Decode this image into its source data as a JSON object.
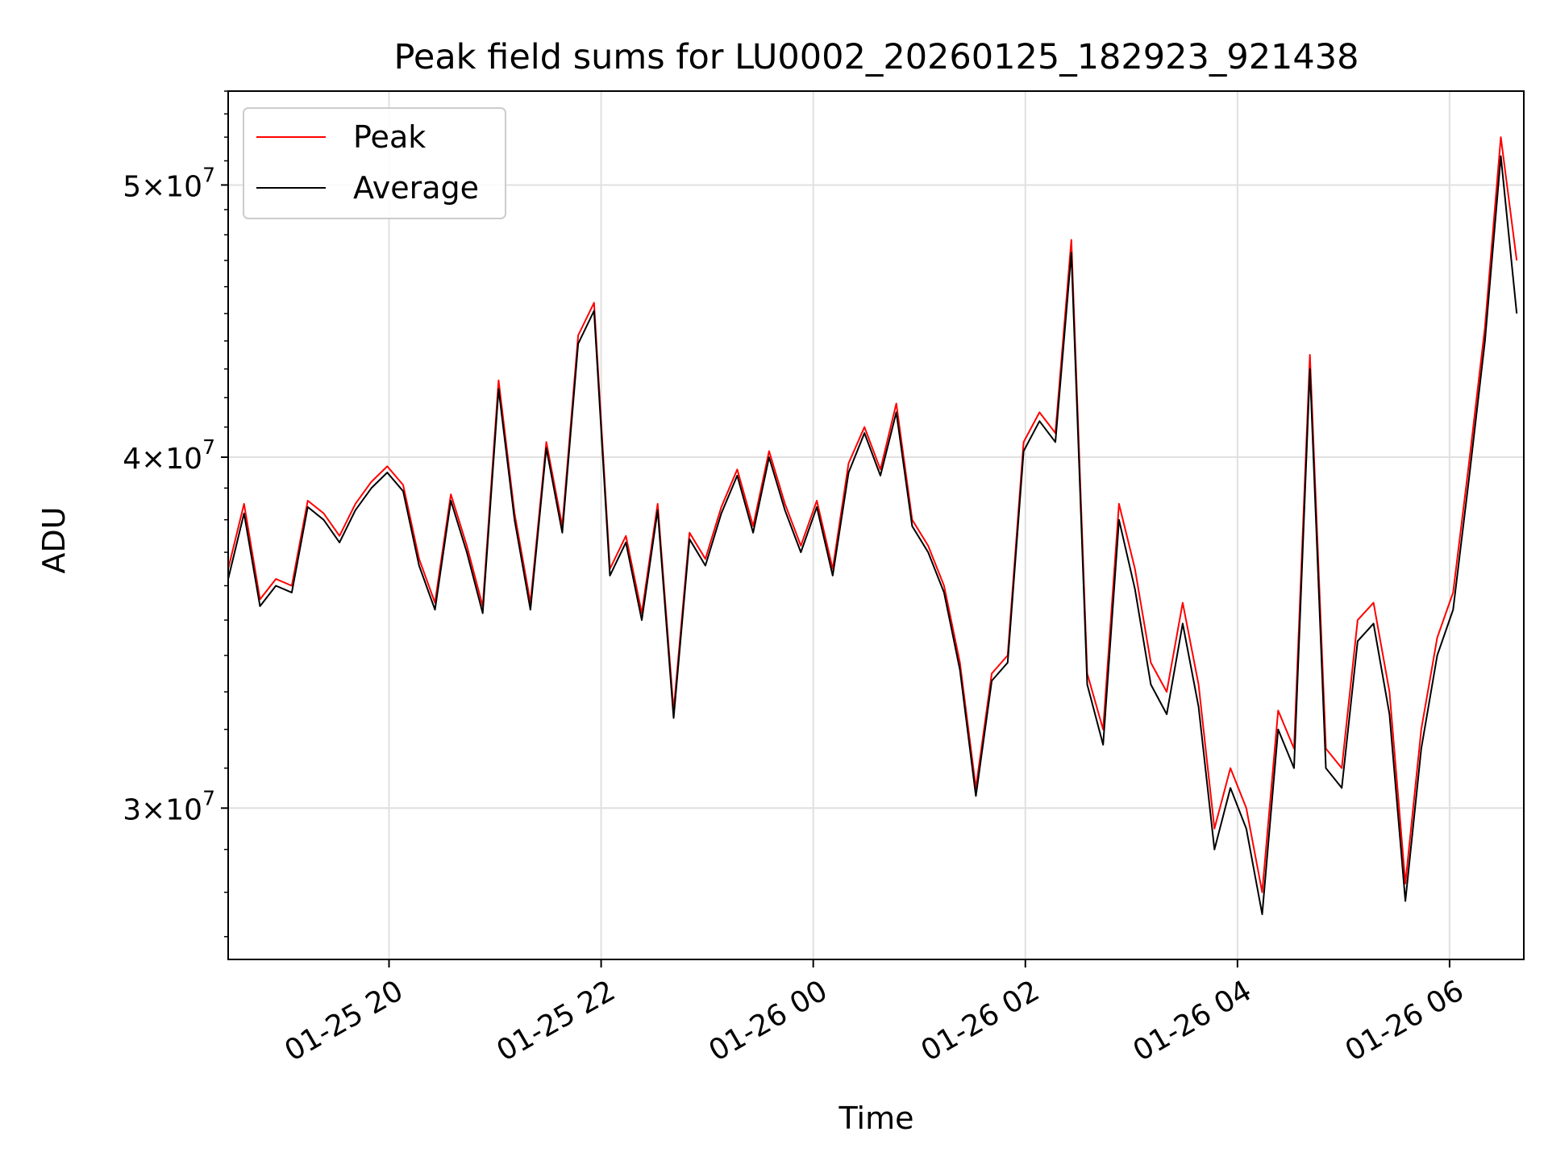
{
  "chart_data": {
    "type": "line",
    "title": "Peak field sums for LU0002_20260125_182923_921438",
    "xlabel": "Time",
    "ylabel": "ADU",
    "y_scale": "log",
    "ylim": [
      26500000,
      54000000
    ],
    "xlim": [
      "2026-01-25 18:29",
      "2026-01-26 06:42"
    ],
    "grid": true,
    "legend_position": "top-left",
    "x_ticks": [
      {
        "time": "2026-01-25 20:00",
        "label": "01-25 20"
      },
      {
        "time": "2026-01-25 22:00",
        "label": "01-25 22"
      },
      {
        "time": "2026-01-26 00:00",
        "label": "01-26 00"
      },
      {
        "time": "2026-01-26 02:00",
        "label": "01-26 02"
      },
      {
        "time": "2026-01-26 04:00",
        "label": "01-26 04"
      },
      {
        "time": "2026-01-26 06:00",
        "label": "01-26 06"
      }
    ],
    "y_ticks": [
      {
        "value": 30000000,
        "mantissa": "3",
        "exponent": "7"
      },
      {
        "value": 40000000,
        "mantissa": "4",
        "exponent": "7"
      },
      {
        "value": 50000000,
        "mantissa": "5",
        "exponent": "7"
      }
    ],
    "series": [
      {
        "name": "Peak",
        "color": "#ff0000",
        "x": [
          "2026-01-25 18:29",
          "2026-01-25 18:38",
          "2026-01-25 18:47",
          "2026-01-25 18:56",
          "2026-01-25 19:05",
          "2026-01-25 19:14",
          "2026-01-25 19:23",
          "2026-01-25 19:32",
          "2026-01-25 19:41",
          "2026-01-25 19:50",
          "2026-01-25 19:59",
          "2026-01-25 20:08",
          "2026-01-25 20:17",
          "2026-01-25 20:26",
          "2026-01-25 20:35",
          "2026-01-25 20:44",
          "2026-01-25 20:53",
          "2026-01-25 21:02",
          "2026-01-25 21:11",
          "2026-01-25 21:20",
          "2026-01-25 21:29",
          "2026-01-25 21:38",
          "2026-01-25 21:47",
          "2026-01-25 21:56",
          "2026-01-25 22:05",
          "2026-01-25 22:14",
          "2026-01-25 22:23",
          "2026-01-25 22:32",
          "2026-01-25 22:41",
          "2026-01-25 22:50",
          "2026-01-25 22:59",
          "2026-01-25 23:08",
          "2026-01-25 23:17",
          "2026-01-25 23:26",
          "2026-01-25 23:35",
          "2026-01-25 23:44",
          "2026-01-25 23:53",
          "2026-01-26 00:02",
          "2026-01-26 00:11",
          "2026-01-26 00:20",
          "2026-01-26 00:29",
          "2026-01-26 00:38",
          "2026-01-26 00:47",
          "2026-01-26 00:56",
          "2026-01-26 01:05",
          "2026-01-26 01:14",
          "2026-01-26 01:23",
          "2026-01-26 01:32",
          "2026-01-26 01:41",
          "2026-01-26 01:50",
          "2026-01-26 01:59",
          "2026-01-26 02:08",
          "2026-01-26 02:17",
          "2026-01-26 02:26",
          "2026-01-26 02:35",
          "2026-01-26 02:44",
          "2026-01-26 02:53",
          "2026-01-26 03:02",
          "2026-01-26 03:11",
          "2026-01-26 03:20",
          "2026-01-26 03:29",
          "2026-01-26 03:38",
          "2026-01-26 03:47",
          "2026-01-26 03:56",
          "2026-01-26 04:05",
          "2026-01-26 04:14",
          "2026-01-26 04:23",
          "2026-01-26 04:32",
          "2026-01-26 04:41",
          "2026-01-26 04:50",
          "2026-01-26 04:59",
          "2026-01-26 05:08",
          "2026-01-26 05:17",
          "2026-01-26 05:26",
          "2026-01-26 05:35",
          "2026-01-26 05:44",
          "2026-01-26 05:53",
          "2026-01-26 06:02",
          "2026-01-26 06:11",
          "2026-01-26 06:20",
          "2026-01-26 06:29",
          "2026-01-26 06:38"
        ],
        "y": [
          36500000,
          38500000,
          35600000,
          36200000,
          36000000,
          38600000,
          38200000,
          37500000,
          38500000,
          39200000,
          39700000,
          39100000,
          36800000,
          35500000,
          38800000,
          37200000,
          35400000,
          42600000,
          38200000,
          35500000,
          40500000,
          37800000,
          44200000,
          45400000,
          36500000,
          37500000,
          35200000,
          38500000,
          32500000,
          37600000,
          36800000,
          38400000,
          39600000,
          37800000,
          40200000,
          38500000,
          37200000,
          38600000,
          36500000,
          39800000,
          41000000,
          39600000,
          41800000,
          38000000,
          37200000,
          36000000,
          33800000,
          30500000,
          33500000,
          34000000,
          40500000,
          41500000,
          40800000,
          47800000,
          33500000,
          32000000,
          38500000,
          36500000,
          33800000,
          33000000,
          35500000,
          33200000,
          29500000,
          31000000,
          30000000,
          28000000,
          32500000,
          31500000,
          43500000,
          31500000,
          31000000,
          35000000,
          35500000,
          33000000,
          28200000,
          32000000,
          34500000,
          35800000,
          39800000,
          44500000,
          52000000,
          47000000
        ]
      },
      {
        "name": "Average",
        "color": "#000000",
        "x": [
          "2026-01-25 18:29",
          "2026-01-25 18:38",
          "2026-01-25 18:47",
          "2026-01-25 18:56",
          "2026-01-25 19:05",
          "2026-01-25 19:14",
          "2026-01-25 19:23",
          "2026-01-25 19:32",
          "2026-01-25 19:41",
          "2026-01-25 19:50",
          "2026-01-25 19:59",
          "2026-01-25 20:08",
          "2026-01-25 20:17",
          "2026-01-25 20:26",
          "2026-01-25 20:35",
          "2026-01-25 20:44",
          "2026-01-25 20:53",
          "2026-01-25 21:02",
          "2026-01-25 21:11",
          "2026-01-25 21:20",
          "2026-01-25 21:29",
          "2026-01-25 21:38",
          "2026-01-25 21:47",
          "2026-01-25 21:56",
          "2026-01-25 22:05",
          "2026-01-25 22:14",
          "2026-01-25 22:23",
          "2026-01-25 22:32",
          "2026-01-25 22:41",
          "2026-01-25 22:50",
          "2026-01-25 22:59",
          "2026-01-25 23:08",
          "2026-01-25 23:17",
          "2026-01-25 23:26",
          "2026-01-25 23:35",
          "2026-01-25 23:44",
          "2026-01-25 23:53",
          "2026-01-26 00:02",
          "2026-01-26 00:11",
          "2026-01-26 00:20",
          "2026-01-26 00:29",
          "2026-01-26 00:38",
          "2026-01-26 00:47",
          "2026-01-26 00:56",
          "2026-01-26 01:05",
          "2026-01-26 01:14",
          "2026-01-26 01:23",
          "2026-01-26 01:32",
          "2026-01-26 01:41",
          "2026-01-26 01:50",
          "2026-01-26 01:59",
          "2026-01-26 02:08",
          "2026-01-26 02:17",
          "2026-01-26 02:26",
          "2026-01-26 02:35",
          "2026-01-26 02:44",
          "2026-01-26 02:53",
          "2026-01-26 03:02",
          "2026-01-26 03:11",
          "2026-01-26 03:20",
          "2026-01-26 03:29",
          "2026-01-26 03:38",
          "2026-01-26 03:47",
          "2026-01-26 03:56",
          "2026-01-26 04:05",
          "2026-01-26 04:14",
          "2026-01-26 04:23",
          "2026-01-26 04:32",
          "2026-01-26 04:41",
          "2026-01-26 04:50",
          "2026-01-26 04:59",
          "2026-01-26 05:08",
          "2026-01-26 05:17",
          "2026-01-26 05:26",
          "2026-01-26 05:35",
          "2026-01-26 05:44",
          "2026-01-26 05:53",
          "2026-01-26 06:02",
          "2026-01-26 06:11",
          "2026-01-26 06:20",
          "2026-01-26 06:29",
          "2026-01-26 06:38"
        ],
        "y": [
          36200000,
          38200000,
          35400000,
          36000000,
          35800000,
          38400000,
          38000000,
          37300000,
          38300000,
          39000000,
          39500000,
          38900000,
          36600000,
          35300000,
          38600000,
          37000000,
          35200000,
          42300000,
          38000000,
          35300000,
          40300000,
          37600000,
          43900000,
          45100000,
          36300000,
          37300000,
          35000000,
          38300000,
          32300000,
          37400000,
          36600000,
          38200000,
          39400000,
          37600000,
          40000000,
          38300000,
          37000000,
          38400000,
          36300000,
          39500000,
          40800000,
          39400000,
          41500000,
          37800000,
          37000000,
          35800000,
          33600000,
          30300000,
          33300000,
          33800000,
          40200000,
          41200000,
          40500000,
          47300000,
          33200000,
          31600000,
          38000000,
          35900000,
          33200000,
          32400000,
          34900000,
          32600000,
          29000000,
          30500000,
          29500000,
          27500000,
          32000000,
          31000000,
          43000000,
          31000000,
          30500000,
          34400000,
          34900000,
          32400000,
          27800000,
          31500000,
          34000000,
          35300000,
          39300000,
          44000000,
          51200000,
          45000000
        ]
      }
    ]
  }
}
